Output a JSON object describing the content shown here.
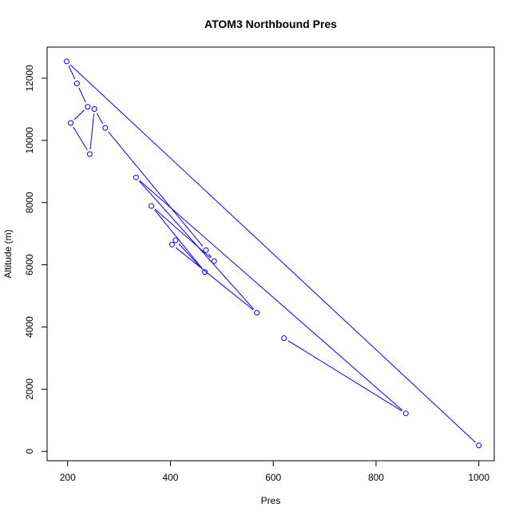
{
  "chart_data": {
    "type": "line",
    "title": "ATOM3 Northbound Pres",
    "xlabel": "Pres",
    "ylabel": "Altitude (m)",
    "xlim": [
      160,
      1030
    ],
    "ylim": [
      -300,
      13000
    ],
    "xticks": [
      200,
      400,
      600,
      800,
      1000
    ],
    "yticks": [
      0,
      2000,
      4000,
      6000,
      8000,
      10000,
      12000
    ],
    "grid": false,
    "legend": "none",
    "color": "#0000ff",
    "marker": "open-circle",
    "series": [
      {
        "x": [
          1000,
          198,
          218,
          239,
          206,
          243,
          252,
          273,
          469,
          485,
          363,
          467,
          410,
          403,
          568,
          333,
          858,
          621
        ],
        "y": [
          190,
          12540,
          11830,
          11080,
          10560,
          9560,
          11010,
          10400,
          6470,
          6120,
          7890,
          5770,
          6790,
          6650,
          4460,
          8810,
          1220,
          3640
        ]
      }
    ]
  }
}
